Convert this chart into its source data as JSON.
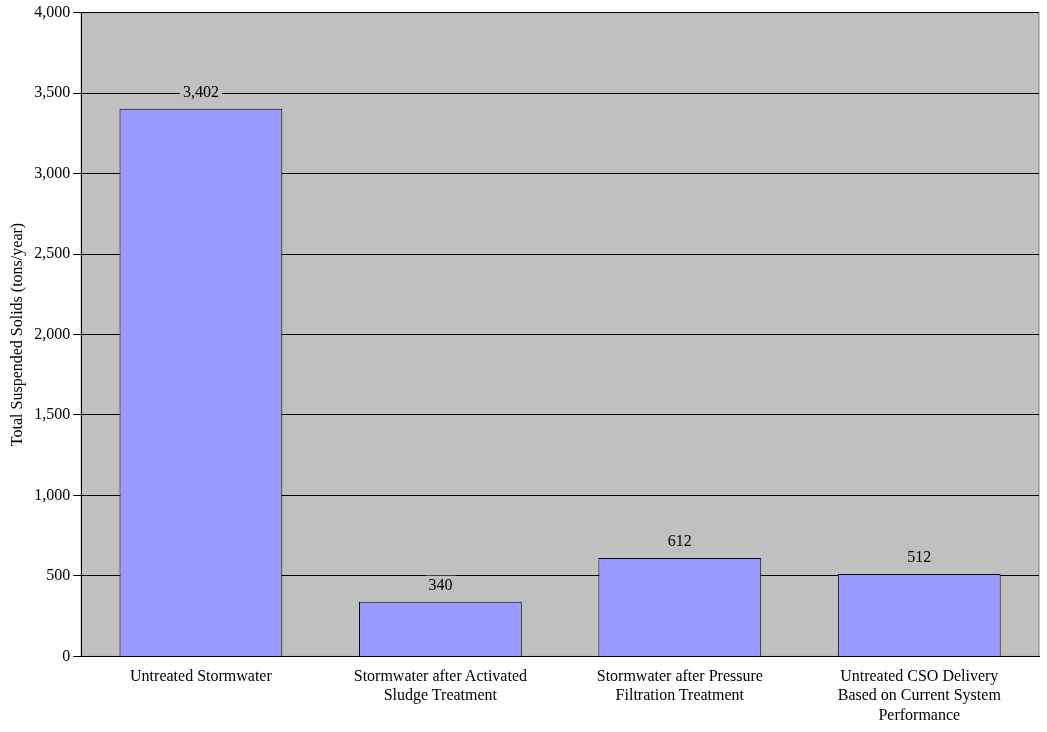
{
  "chart_data": {
    "type": "bar",
    "ylabel": "Total Suspended Solids (tons/year)",
    "categories": [
      "Untreated Stormwater",
      "Stormwater after Activated Sludge Treatment",
      "Stormwater after Pressure Filtration Treatment",
      "Untreated CSO Delivery Based on Current System Performance"
    ],
    "values": [
      3402,
      340,
      612,
      512
    ],
    "color": "#9999ff",
    "ylim": [
      0,
      4000
    ],
    "yticks": [
      {
        "value": 0,
        "label": "0"
      },
      {
        "value": 500,
        "label": "500"
      },
      {
        "value": 1000,
        "label": "1,000"
      },
      {
        "value": 1500,
        "label": "1,500"
      },
      {
        "value": 2000,
        "label": "2,000"
      },
      {
        "value": 2500,
        "label": "2,500"
      },
      {
        "value": 3000,
        "label": "3,000"
      },
      {
        "value": 3500,
        "label": "3,500"
      },
      {
        "value": 4000,
        "label": "4,000"
      }
    ],
    "grid": "y",
    "legend": false,
    "data_labels": true,
    "value_labels": [
      "3,402",
      "340",
      "612",
      "512"
    ]
  }
}
